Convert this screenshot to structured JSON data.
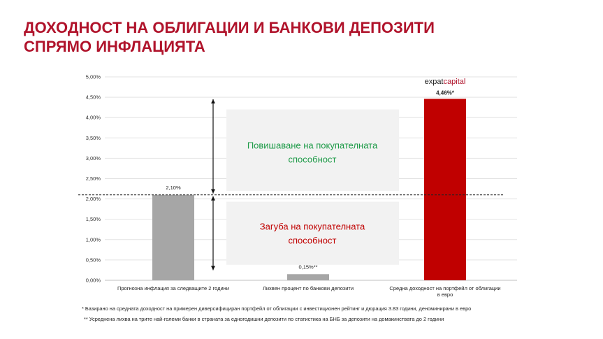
{
  "title_lines": [
    "ДОХОДНОСТ НА ОБЛИГАЦИИ И БАНКОВИ ДЕПОЗИТИ",
    "СПРЯМО ИНФЛАЦИЯТА"
  ],
  "chart_data": {
    "type": "bar",
    "categories": [
      [
        "Прогнозна инфлация за следващите 2 години"
      ],
      [
        "Лихвен процент по банкови депозити"
      ],
      [
        "Средна доходност на портфейл от облигации",
        "в евро"
      ]
    ],
    "values": [
      2.1,
      0.15,
      4.46
    ],
    "value_labels": [
      "2,10%",
      "0,15%**",
      "4,46%*"
    ],
    "bar_colors": [
      "#a6a6a6",
      "#a6a6a6",
      "#c00000"
    ],
    "ylim": [
      0,
      5
    ],
    "yticks": [
      "0,00%",
      "0,50%",
      "1,00%",
      "1,50%",
      "2,00%",
      "2,50%",
      "3,00%",
      "3,50%",
      "4,00%",
      "4,50%",
      "5,00%"
    ],
    "grid": true,
    "reference_line": 2.1,
    "xlabel": "",
    "ylabel": "",
    "annotations": {
      "gain": [
        "Повишаване на покупателната",
        "способност"
      ],
      "loss": [
        "Загуба на покупателната",
        "способност"
      ],
      "gain_color": "#1e9b48",
      "loss_color": "#c00000"
    }
  },
  "logo": {
    "part1": "expat",
    "part2": "capital",
    "color1": "#222222",
    "color2": "#b0132b"
  },
  "footnotes": [
    "* Базирано на средната доходност на примерен диверсифициран портфейл от облигации с инвестиционен рейтинг и дюрация 3.83 години, деноминирани в евро",
    "** Усреднена лихва на трите най-големи банки в страната за едногодишни депозити по статистика на БНБ за депозити на домакинствата до 2 години"
  ]
}
